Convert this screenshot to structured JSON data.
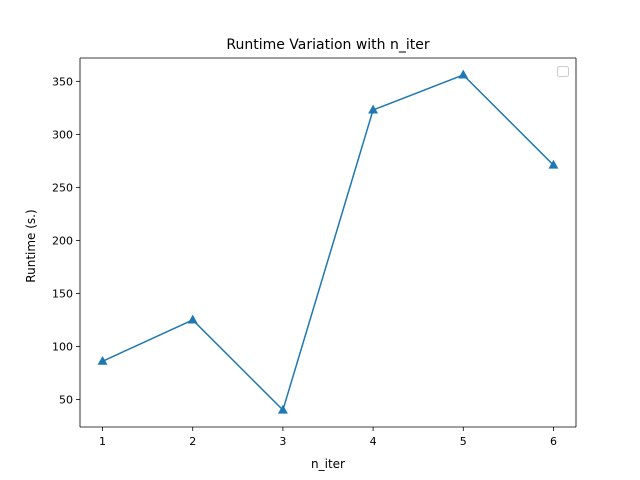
{
  "chart_data": {
    "type": "line",
    "title": "Runtime Variation with n_iter",
    "xlabel": "n_iter",
    "ylabel": "Runtime (s.)",
    "x": [
      1,
      2,
      3,
      4,
      5,
      6
    ],
    "series": [
      {
        "values": [
          86,
          125,
          40,
          323,
          356,
          271
        ],
        "color": "#1f77b4",
        "marker": "triangle-up"
      }
    ],
    "xlim": [
      0.75,
      6.25
    ],
    "ylim": [
      24,
      372
    ],
    "xticks": [
      1,
      2,
      3,
      4,
      5,
      6
    ],
    "yticks": [
      50,
      100,
      150,
      200,
      250,
      300,
      350
    ],
    "grid": false,
    "legend": {
      "placement": "top-right",
      "entries": []
    }
  }
}
